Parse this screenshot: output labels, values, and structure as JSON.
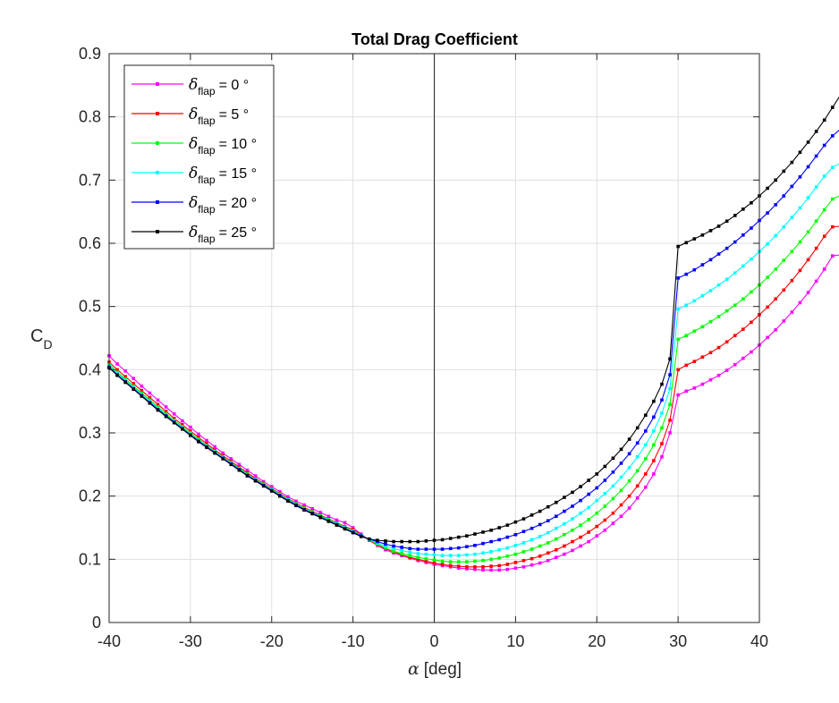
{
  "chart_data": {
    "type": "line",
    "title": "Total Drag Coefficient",
    "xlabel_symbol": "α",
    "xlabel_unit": "[deg]",
    "ylabel_main": "C",
    "ylabel_sub": "D",
    "xlim": [
      -40,
      40
    ],
    "ylim": [
      0,
      0.9
    ],
    "xticks": [
      "-40",
      "-30",
      "-20",
      "-10",
      "0",
      "10",
      "20",
      "30",
      "40"
    ],
    "yticks": [
      "0",
      "0.1",
      "0.2",
      "0.3",
      "0.4",
      "0.5",
      "0.6",
      "0.7",
      "0.8",
      "0.9"
    ],
    "grid": true,
    "zero_line": true,
    "legend_location": "top-left",
    "x_step": 1,
    "series": [
      {
        "legend_symbol": "δ",
        "legend_sub": "flap",
        "legend_value": "= 0 °",
        "color": "#ff00ff",
        "x_start": -40,
        "values": [
          0.422,
          0.409,
          0.398,
          0.386,
          0.374,
          0.363,
          0.352,
          0.341,
          0.33,
          0.319,
          0.309,
          0.298,
          0.288,
          0.278,
          0.268,
          0.259,
          0.25,
          0.241,
          0.232,
          0.223,
          0.215,
          0.207,
          0.199,
          0.192,
          0.186,
          0.18,
          0.174,
          0.168,
          0.162,
          0.158,
          0.15,
          0.14,
          0.13,
          0.122,
          0.115,
          0.11,
          0.106,
          0.102,
          0.098,
          0.095,
          0.092,
          0.09,
          0.088,
          0.086,
          0.085,
          0.084,
          0.083,
          0.083,
          0.083,
          0.084,
          0.086,
          0.088,
          0.091,
          0.094,
          0.098,
          0.103,
          0.108,
          0.114,
          0.121,
          0.128,
          0.137,
          0.146,
          0.157,
          0.168,
          0.181,
          0.197,
          0.214,
          0.235,
          0.262,
          0.3,
          0.36,
          0.366,
          0.371,
          0.377,
          0.384,
          0.391,
          0.399,
          0.408,
          0.418,
          0.428,
          0.439,
          0.451,
          0.463,
          0.477,
          0.491,
          0.506,
          0.522,
          0.54,
          0.559,
          0.58,
          0.582
        ]
      },
      {
        "legend_symbol": "δ",
        "legend_sub": "flap",
        "legend_value": "= 5 °",
        "color": "#ff0000",
        "x_start": -40,
        "values": [
          0.412,
          0.4,
          0.389,
          0.378,
          0.367,
          0.356,
          0.345,
          0.334,
          0.323,
          0.313,
          0.303,
          0.293,
          0.283,
          0.273,
          0.264,
          0.255,
          0.246,
          0.237,
          0.228,
          0.22,
          0.212,
          0.204,
          0.196,
          0.189,
          0.182,
          0.176,
          0.17,
          0.164,
          0.158,
          0.152,
          0.147,
          0.139,
          0.13,
          0.123,
          0.117,
          0.112,
          0.107,
          0.103,
          0.1,
          0.097,
          0.094,
          0.092,
          0.09,
          0.089,
          0.088,
          0.088,
          0.088,
          0.089,
          0.09,
          0.092,
          0.095,
          0.098,
          0.101,
          0.105,
          0.11,
          0.115,
          0.121,
          0.128,
          0.135,
          0.143,
          0.152,
          0.162,
          0.173,
          0.186,
          0.2,
          0.216,
          0.235,
          0.256,
          0.283,
          0.32,
          0.4,
          0.407,
          0.413,
          0.42,
          0.427,
          0.435,
          0.444,
          0.454,
          0.464,
          0.475,
          0.487,
          0.499,
          0.512,
          0.526,
          0.541,
          0.557,
          0.574,
          0.592,
          0.611,
          0.626,
          0.627
        ]
      },
      {
        "legend_symbol": "δ",
        "legend_sub": "flap",
        "legend_value": "= 10 °",
        "color": "#00ff00",
        "x_start": -40,
        "values": [
          0.408,
          0.396,
          0.385,
          0.374,
          0.363,
          0.352,
          0.341,
          0.33,
          0.32,
          0.31,
          0.3,
          0.29,
          0.28,
          0.271,
          0.262,
          0.253,
          0.244,
          0.235,
          0.227,
          0.219,
          0.211,
          0.203,
          0.195,
          0.188,
          0.181,
          0.175,
          0.169,
          0.163,
          0.157,
          0.151,
          0.145,
          0.138,
          0.131,
          0.124,
          0.118,
          0.113,
          0.109,
          0.106,
          0.103,
          0.101,
          0.099,
          0.097,
          0.096,
          0.096,
          0.096,
          0.097,
          0.098,
          0.1,
          0.102,
          0.105,
          0.108,
          0.112,
          0.116,
          0.121,
          0.126,
          0.132,
          0.139,
          0.146,
          0.154,
          0.163,
          0.173,
          0.184,
          0.196,
          0.209,
          0.224,
          0.24,
          0.259,
          0.281,
          0.308,
          0.345,
          0.448,
          0.454,
          0.461,
          0.468,
          0.476,
          0.484,
          0.493,
          0.502,
          0.512,
          0.523,
          0.534,
          0.546,
          0.559,
          0.573,
          0.587,
          0.602,
          0.618,
          0.635,
          0.653,
          0.67,
          0.676
        ]
      },
      {
        "legend_symbol": "δ",
        "legend_sub": "flap",
        "legend_value": "= 15 °",
        "color": "#00ffff",
        "x_start": -40,
        "values": [
          0.406,
          0.394,
          0.383,
          0.372,
          0.361,
          0.35,
          0.339,
          0.328,
          0.318,
          0.308,
          0.298,
          0.288,
          0.279,
          0.27,
          0.261,
          0.252,
          0.243,
          0.234,
          0.226,
          0.218,
          0.21,
          0.202,
          0.194,
          0.187,
          0.18,
          0.174,
          0.168,
          0.162,
          0.156,
          0.15,
          0.144,
          0.137,
          0.131,
          0.126,
          0.121,
          0.117,
          0.114,
          0.111,
          0.109,
          0.108,
          0.107,
          0.106,
          0.106,
          0.106,
          0.107,
          0.108,
          0.11,
          0.112,
          0.115,
          0.118,
          0.122,
          0.126,
          0.131,
          0.136,
          0.142,
          0.149,
          0.156,
          0.164,
          0.173,
          0.182,
          0.193,
          0.204,
          0.216,
          0.23,
          0.245,
          0.262,
          0.281,
          0.303,
          0.331,
          0.37,
          0.496,
          0.502,
          0.509,
          0.517,
          0.525,
          0.534,
          0.543,
          0.553,
          0.564,
          0.575,
          0.587,
          0.599,
          0.612,
          0.626,
          0.641,
          0.656,
          0.672,
          0.689,
          0.706,
          0.72,
          0.727
        ]
      },
      {
        "legend_symbol": "δ",
        "legend_sub": "flap",
        "legend_value": "= 20 °",
        "color": "#0000ff",
        "x_start": -40,
        "values": [
          0.404,
          0.392,
          0.381,
          0.37,
          0.359,
          0.348,
          0.337,
          0.327,
          0.317,
          0.307,
          0.297,
          0.287,
          0.278,
          0.269,
          0.26,
          0.251,
          0.242,
          0.233,
          0.225,
          0.217,
          0.209,
          0.201,
          0.193,
          0.186,
          0.179,
          0.173,
          0.167,
          0.161,
          0.155,
          0.149,
          0.143,
          0.137,
          0.132,
          0.128,
          0.124,
          0.121,
          0.119,
          0.117,
          0.116,
          0.116,
          0.116,
          0.116,
          0.117,
          0.118,
          0.12,
          0.122,
          0.125,
          0.128,
          0.131,
          0.135,
          0.139,
          0.144,
          0.149,
          0.155,
          0.161,
          0.168,
          0.176,
          0.184,
          0.193,
          0.203,
          0.213,
          0.225,
          0.238,
          0.252,
          0.267,
          0.284,
          0.303,
          0.325,
          0.352,
          0.392,
          0.545,
          0.551,
          0.558,
          0.566,
          0.574,
          0.583,
          0.592,
          0.602,
          0.613,
          0.624,
          0.636,
          0.648,
          0.661,
          0.675,
          0.69,
          0.705,
          0.721,
          0.738,
          0.755,
          0.77,
          0.781
        ]
      },
      {
        "legend_symbol": "δ",
        "legend_sub": "flap",
        "legend_value": "= 25 °",
        "color": "#000000",
        "x_start": -40,
        "values": [
          0.403,
          0.391,
          0.38,
          0.369,
          0.358,
          0.347,
          0.336,
          0.326,
          0.316,
          0.306,
          0.296,
          0.286,
          0.277,
          0.268,
          0.259,
          0.25,
          0.241,
          0.232,
          0.224,
          0.216,
          0.208,
          0.2,
          0.192,
          0.185,
          0.178,
          0.172,
          0.166,
          0.16,
          0.154,
          0.148,
          0.142,
          0.136,
          0.132,
          0.13,
          0.129,
          0.128,
          0.128,
          0.128,
          0.128,
          0.129,
          0.13,
          0.131,
          0.133,
          0.135,
          0.137,
          0.14,
          0.143,
          0.146,
          0.15,
          0.154,
          0.159,
          0.164,
          0.17,
          0.176,
          0.183,
          0.19,
          0.198,
          0.206,
          0.215,
          0.225,
          0.235,
          0.247,
          0.26,
          0.274,
          0.29,
          0.308,
          0.328,
          0.35,
          0.377,
          0.417,
          0.595,
          0.601,
          0.607,
          0.613,
          0.62,
          0.627,
          0.635,
          0.644,
          0.654,
          0.664,
          0.675,
          0.687,
          0.7,
          0.714,
          0.728,
          0.744,
          0.76,
          0.777,
          0.795,
          0.815,
          0.835
        ]
      }
    ]
  }
}
